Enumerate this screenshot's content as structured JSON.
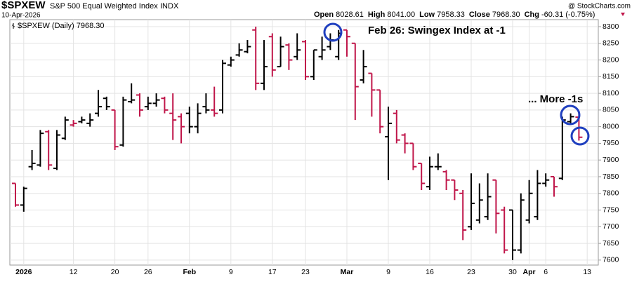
{
  "chart_data": {
    "type": "ohlc",
    "symbol": "$SPXEW",
    "title": "S&P 500 Equal Weighted Index",
    "exchange": "INDX",
    "date": "10-Apr-2026",
    "copyright": "@ StockCharts.com",
    "quote": [
      [
        "Open",
        "8028.61"
      ],
      [
        "High",
        "8041.00"
      ],
      [
        "Low",
        "7958.33"
      ],
      [
        "Close",
        "7968.30"
      ],
      [
        "Chg",
        "-60.31 (-0.75%)"
      ]
    ],
    "legend": "$SPXEW (Daily) 7968.30",
    "annotations": [
      "Feb 26: Swingex Index at -1",
      "... More -1s"
    ],
    "up_color": "#000000",
    "down_color": "#c0164a",
    "annotation_color": "#1f3fbf",
    "categories": [
      null,
      "2026",
      null,
      null,
      null,
      null,
      null,
      "12",
      null,
      null,
      null,
      null,
      "20",
      null,
      null,
      null,
      "26",
      null,
      null,
      null,
      null,
      "Feb",
      null,
      null,
      null,
      null,
      "9",
      null,
      null,
      null,
      null,
      "17",
      null,
      null,
      null,
      "23",
      null,
      null,
      null,
      null,
      "Mar",
      null,
      null,
      null,
      null,
      "9",
      null,
      null,
      null,
      null,
      "16",
      null,
      null,
      null,
      null,
      "23",
      null,
      null,
      null,
      null,
      "30",
      null,
      "Apr",
      null,
      "6",
      null,
      null,
      null,
      null,
      "13"
    ],
    "open": [
      7830,
      7765,
      7880,
      7885,
      7985,
      7875,
      7965,
      8005,
      8015,
      8010,
      8040,
      8085,
      8050,
      7945,
      8075,
      8095,
      8060,
      8070,
      8085,
      8040,
      8030,
      8040,
      8000,
      8060,
      8050,
      8050,
      8185,
      8215,
      8225,
      8290,
      8130,
      8270,
      8180,
      8245,
      8210,
      8255,
      8150,
      8210,
      8240,
      8210,
      8290,
      8250,
      8140,
      8160,
      8110,
      7970,
      8040,
      7975,
      7950,
      7890,
      7820,
      7880,
      7865,
      7840,
      7800,
      7700,
      7720,
      7730,
      7840,
      7750,
      7750,
      7630,
      7720,
      7730,
      7830,
      7850,
      7845,
      8015,
      8028.61,
      null
    ],
    "high": [
      7830,
      7820,
      7930,
      7990,
      7990,
      7990,
      8030,
      8020,
      8030,
      8040,
      8110,
      8090,
      8050,
      8090,
      8130,
      8100,
      8090,
      8100,
      8090,
      8100,
      8040,
      8060,
      8070,
      8100,
      8120,
      8200,
      8210,
      8250,
      8260,
      8300,
      8260,
      8280,
      8270,
      8250,
      8280,
      8260,
      8230,
      8270,
      8280,
      8290,
      8290,
      8250,
      8230,
      8160,
      8110,
      8060,
      8050,
      7980,
      7950,
      7890,
      7910,
      7920,
      7870,
      7840,
      7810,
      7860,
      7830,
      7860,
      7840,
      7760,
      7750,
      7800,
      7840,
      7870,
      7860,
      7850,
      8030,
      8040,
      8041,
      null
    ],
    "low": [
      7760,
      7745,
      7870,
      7880,
      7870,
      7870,
      7960,
      8000,
      8010,
      8000,
      8030,
      8050,
      7930,
      7940,
      8070,
      8030,
      8050,
      8060,
      8040,
      7960,
      7950,
      7980,
      7980,
      8040,
      8030,
      8040,
      8180,
      8210,
      8220,
      8110,
      8110,
      8150,
      8180,
      8170,
      8200,
      8140,
      8140,
      8200,
      8230,
      8200,
      8210,
      8020,
      8130,
      8030,
      7980,
      7840,
      7950,
      7920,
      7870,
      7810,
      7810,
      7870,
      7810,
      7780,
      7660,
      7690,
      7710,
      7720,
      7680,
      7620,
      7600,
      7620,
      7710,
      7720,
      7820,
      7790,
      7840,
      8010,
      7958.33,
      null
    ],
    "close": [
      7765,
      7815,
      7890,
      7980,
      7885,
      7975,
      8020,
      8010,
      8020,
      8020,
      8060,
      8060,
      7940,
      8080,
      8080,
      8050,
      8070,
      8080,
      8050,
      8020,
      8000,
      8000,
      8040,
      8050,
      8040,
      8190,
      8200,
      8230,
      8240,
      8130,
      8180,
      8170,
      8240,
      8200,
      8230,
      8150,
      8230,
      8230,
      8260,
      8280,
      8270,
      8120,
      8180,
      8110,
      8000,
      8010,
      7960,
      7950,
      7880,
      7830,
      7880,
      7880,
      7840,
      7810,
      7690,
      7770,
      7780,
      7790,
      7740,
      7630,
      7630,
      7780,
      7800,
      7830,
      7840,
      7820,
      8020,
      8030,
      7968.3,
      null
    ],
    "ylim": [
      7585,
      8321
    ],
    "yticks": [
      7600,
      7650,
      7700,
      7750,
      7800,
      7850,
      7900,
      7950,
      8000,
      8050,
      8100,
      8150,
      8200,
      8250,
      8300
    ],
    "grid": true
  }
}
